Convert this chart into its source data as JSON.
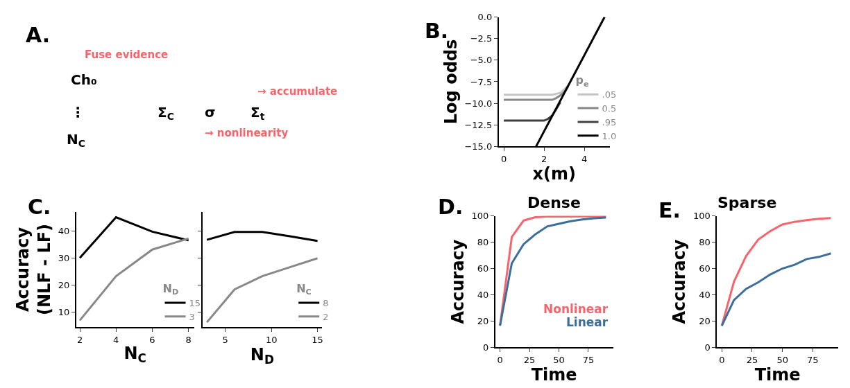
{
  "chart_data": [
    {
      "type": "other",
      "annotations": [
        "A.",
        "Fuse evidence",
        "Ch₀",
        "⋮",
        "N$_{C}$",
        "Σ$_{C}$",
        "σ",
        "Σ$_{t}$",
        "→ accumulate",
        "→ nonlinearity"
      ]
    },
    {
      "type": "line",
      "annotations": [
        "B."
      ],
      "xlabel": "x(m)",
      "ylabel": "Log odds",
      "xlim": [
        -0.25,
        5.25
      ],
      "xticks": [
        0,
        2,
        4
      ],
      "ylim": [
        -15,
        0
      ],
      "yticks": [
        {
          "value": 0,
          "label": "0.0"
        },
        {
          "value": -2.5,
          "label": "−2.5"
        },
        {
          "value": -5,
          "label": "−5.0"
        },
        {
          "value": -7.5,
          "label": "−7.5"
        },
        {
          "value": -10,
          "label": "−10.0"
        },
        {
          "value": -12.5,
          "label": "−12.5"
        },
        {
          "value": -15,
          "label": "−15.0"
        }
      ],
      "legend": "bottom right",
      "legend_title": "p$_{e}$",
      "series": [
        {
          "name": ".05",
          "color": "#c4c4c4",
          "x": [
            0,
            1,
            2,
            2.4,
            2.6,
            2.8,
            3.0,
            3.2
          ],
          "values": [
            -9,
            -9,
            -9,
            -9,
            -8.9,
            -8.8,
            -8.4,
            -7.9
          ]
        },
        {
          "name": "0.5",
          "color": "#878787",
          "x": [
            0,
            1,
            2,
            2.4,
            2.6,
            2.8,
            3.0,
            3.2
          ],
          "values": [
            -9.6,
            -9.6,
            -9.6,
            -9.6,
            -9.4,
            -9.1,
            -8.7,
            -8.0
          ]
        },
        {
          "name": ".95",
          "color": "#404040",
          "x": [
            0,
            1,
            2.0,
            2.2,
            2.4,
            2.6,
            2.8
          ],
          "values": [
            -12,
            -12,
            -12,
            -11.8,
            -11.4,
            -10.7,
            -9.9
          ]
        },
        {
          "name": "1.0",
          "color": "#000000",
          "x": [
            1.6,
            5
          ],
          "values": [
            -15,
            0
          ]
        }
      ]
    },
    {
      "type": "line",
      "annotations": [
        "C."
      ],
      "xlabel": "N$_{C}$",
      "ylabel": "Accuracy\n(NLF - LF)",
      "xlim": [
        1.8,
        8.3
      ],
      "xticks": [
        2,
        4,
        6,
        8
      ],
      "ylim": [
        4.5,
        47
      ],
      "yticks": [
        10,
        20,
        30,
        40
      ],
      "legend": "bottom right",
      "legend_title": "N$_{D}$",
      "series": [
        {
          "name": "15",
          "color": "#000000",
          "x": [
            2,
            4,
            6,
            8
          ],
          "values": [
            30,
            45,
            39.7,
            36.5
          ]
        },
        {
          "name": "3",
          "color": "#888888",
          "x": [
            2,
            4,
            6,
            8
          ],
          "values": [
            7,
            23.3,
            33.1,
            37.2
          ]
        }
      ]
    },
    {
      "type": "line",
      "xlabel": "N$_{D}$",
      "xlim": [
        2.5,
        15.5
      ],
      "xticks": [
        5,
        10,
        15
      ],
      "ylim": [
        4.5,
        47
      ],
      "yticks": [
        10,
        20,
        30,
        40
      ],
      "tick_labels": "x",
      "legend": "bottom right",
      "legend_title": "N$_{C}$",
      "series": [
        {
          "name": "8",
          "color": "#000000",
          "x": [
            3,
            6,
            9,
            12,
            15
          ],
          "values": [
            36.7,
            39.6,
            39.6,
            38,
            36.3
          ]
        },
        {
          "name": "2",
          "color": "#888888",
          "x": [
            3,
            6,
            9,
            12,
            15
          ],
          "values": [
            6.3,
            18.4,
            23.3,
            26.6,
            29.9
          ]
        }
      ]
    },
    {
      "type": "line",
      "annotations": [
        "D."
      ],
      "title": "Dense",
      "xlabel": "Time",
      "ylabel": "Accuracy",
      "xlim": [
        -4,
        96
      ],
      "xticks": [
        0,
        25,
        50,
        75
      ],
      "ylim": [
        0,
        100
      ],
      "yticks": [
        0,
        20,
        40,
        60,
        80,
        100
      ],
      "series": [
        {
          "name": "Nonlinear",
          "color": "#f8646b",
          "x": [
            0,
            10,
            20,
            30,
            40,
            50,
            60,
            70,
            80,
            90
          ],
          "values": [
            16.5,
            84,
            96.5,
            99,
            99.5,
            99.6,
            99.6,
            99.7,
            99.7,
            99.7
          ]
        },
        {
          "name": "Linear",
          "color": "#3b6e9c",
          "x": [
            0,
            10,
            20,
            30,
            40,
            50,
            60,
            70,
            80,
            90
          ],
          "values": [
            16.5,
            64,
            78.5,
            86,
            92,
            94,
            96,
            97.3,
            98.2,
            98.8
          ]
        }
      ]
    },
    {
      "type": "line",
      "annotations": [
        "E."
      ],
      "title": "Sparse",
      "xlabel": "Time",
      "ylabel": "Accuracy",
      "xlim": [
        -4,
        96
      ],
      "xticks": [
        0,
        25,
        50,
        75
      ],
      "ylim": [
        0,
        100
      ],
      "yticks": [
        0,
        20,
        40,
        60,
        80,
        100
      ],
      "series": [
        {
          "color": "#f8646b",
          "x": [
            0,
            10,
            20,
            30,
            40,
            50,
            60,
            70,
            80,
            90
          ],
          "values": [
            16.5,
            50,
            69.5,
            82,
            88.5,
            93.5,
            95.5,
            96.8,
            97.8,
            98.3
          ]
        },
        {
          "color": "#3b6e9c",
          "x": [
            0,
            10,
            20,
            30,
            40,
            50,
            60,
            70,
            80,
            90
          ],
          "values": [
            16.5,
            36,
            44.5,
            49.5,
            55.5,
            60,
            62.8,
            67.2,
            68.8,
            71.5
          ]
        }
      ]
    }
  ]
}
